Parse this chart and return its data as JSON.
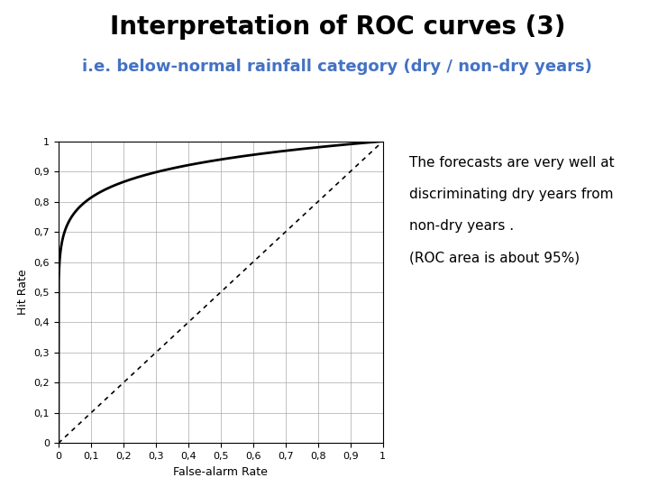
{
  "title": "Interpretation of ROC curves (3)",
  "subtitle": "i.e. below-normal rainfall category (dry / non-dry years)",
  "title_color": "#000000",
  "subtitle_color": "#4472C4",
  "xlabel": "False-alarm Rate",
  "ylabel": "Hit Rate",
  "xlim": [
    0,
    1
  ],
  "ylim": [
    0,
    1
  ],
  "xticks": [
    0,
    0.1,
    0.2,
    0.3,
    0.4,
    0.5,
    0.6,
    0.7,
    0.8,
    0.9,
    1.0
  ],
  "yticks": [
    0,
    0.1,
    0.2,
    0.3,
    0.4,
    0.5,
    0.6,
    0.7,
    0.8,
    0.9,
    1.0
  ],
  "xticklabels": [
    "0",
    "0,1",
    "0,2",
    "0,3",
    "0,4",
    "0,5",
    "0,6",
    "0,7",
    "0,8",
    "0,9",
    "1"
  ],
  "yticklabels": [
    "0",
    "0,1",
    "0,2",
    "0,3",
    "0,4",
    "0,5",
    "0,6",
    "0,7",
    "0,8",
    "0,9",
    "1"
  ],
  "roc_color": "#000000",
  "diag_color": "#000000",
  "annotation_line1": "The forecasts are very well at",
  "annotation_line2": "discriminating dry years from",
  "annotation_line3": "non-dry years .",
  "annotation_line4": "(ROC area is about 95%)",
  "annotation_fontsize": 11,
  "background_color": "#ffffff",
  "grid_color": "#aaaaaa",
  "title_fontsize": 20,
  "subtitle_fontsize": 13,
  "axis_label_fontsize": 9,
  "tick_fontsize": 8,
  "roc_power": 0.09
}
